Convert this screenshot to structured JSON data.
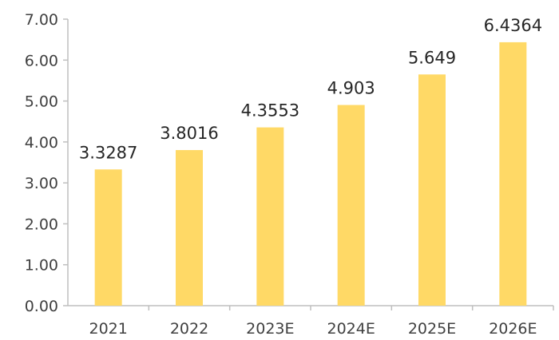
{
  "chart_data": {
    "type": "bar",
    "categories": [
      "2021",
      "2022",
      "2023E",
      "2024E",
      "2025E",
      "2026E"
    ],
    "values": [
      3.3287,
      3.8016,
      4.3553,
      4.903,
      5.649,
      6.4364
    ],
    "value_labels": [
      "3.3287",
      "3.8016",
      "4.3553",
      "4.903",
      "5.649",
      "6.4364"
    ],
    "ylim": [
      0,
      7
    ],
    "yticks": [
      "0.00",
      "1.00",
      "2.00",
      "3.00",
      "4.00",
      "5.00",
      "6.00",
      "7.00"
    ],
    "grid": false,
    "legend": "none",
    "title": "",
    "xlabel": "",
    "ylabel": "",
    "colors": {
      "bar": "#FFD966",
      "axis": "#BFBFBF"
    }
  }
}
